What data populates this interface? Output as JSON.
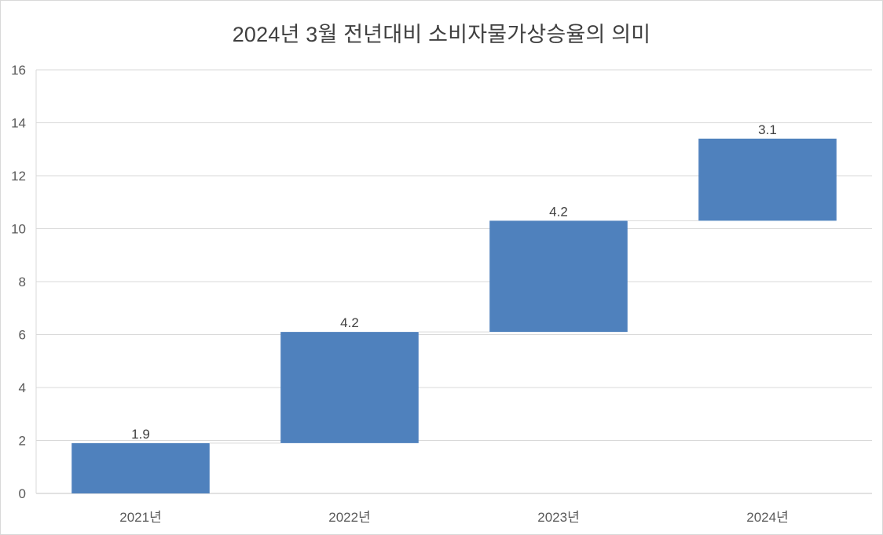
{
  "chart_data": {
    "type": "bar",
    "subtype": "waterfall",
    "title": "2024년 3월 전년대비 소비자물가상승율의 의미",
    "xlabel": "",
    "ylabel": "",
    "categories": [
      "2021년",
      "2022년",
      "2023년",
      "2024년"
    ],
    "values": [
      1.9,
      4.2,
      4.2,
      3.1
    ],
    "data_labels": [
      "1.9",
      "4.2",
      "4.2",
      "3.1"
    ],
    "ylim": [
      0,
      16
    ],
    "yticks": [
      "0",
      "2",
      "4",
      "6",
      "8",
      "10",
      "12",
      "14",
      "16"
    ],
    "grid": true,
    "legend": "none",
    "bar_color": "#4f81bd"
  }
}
